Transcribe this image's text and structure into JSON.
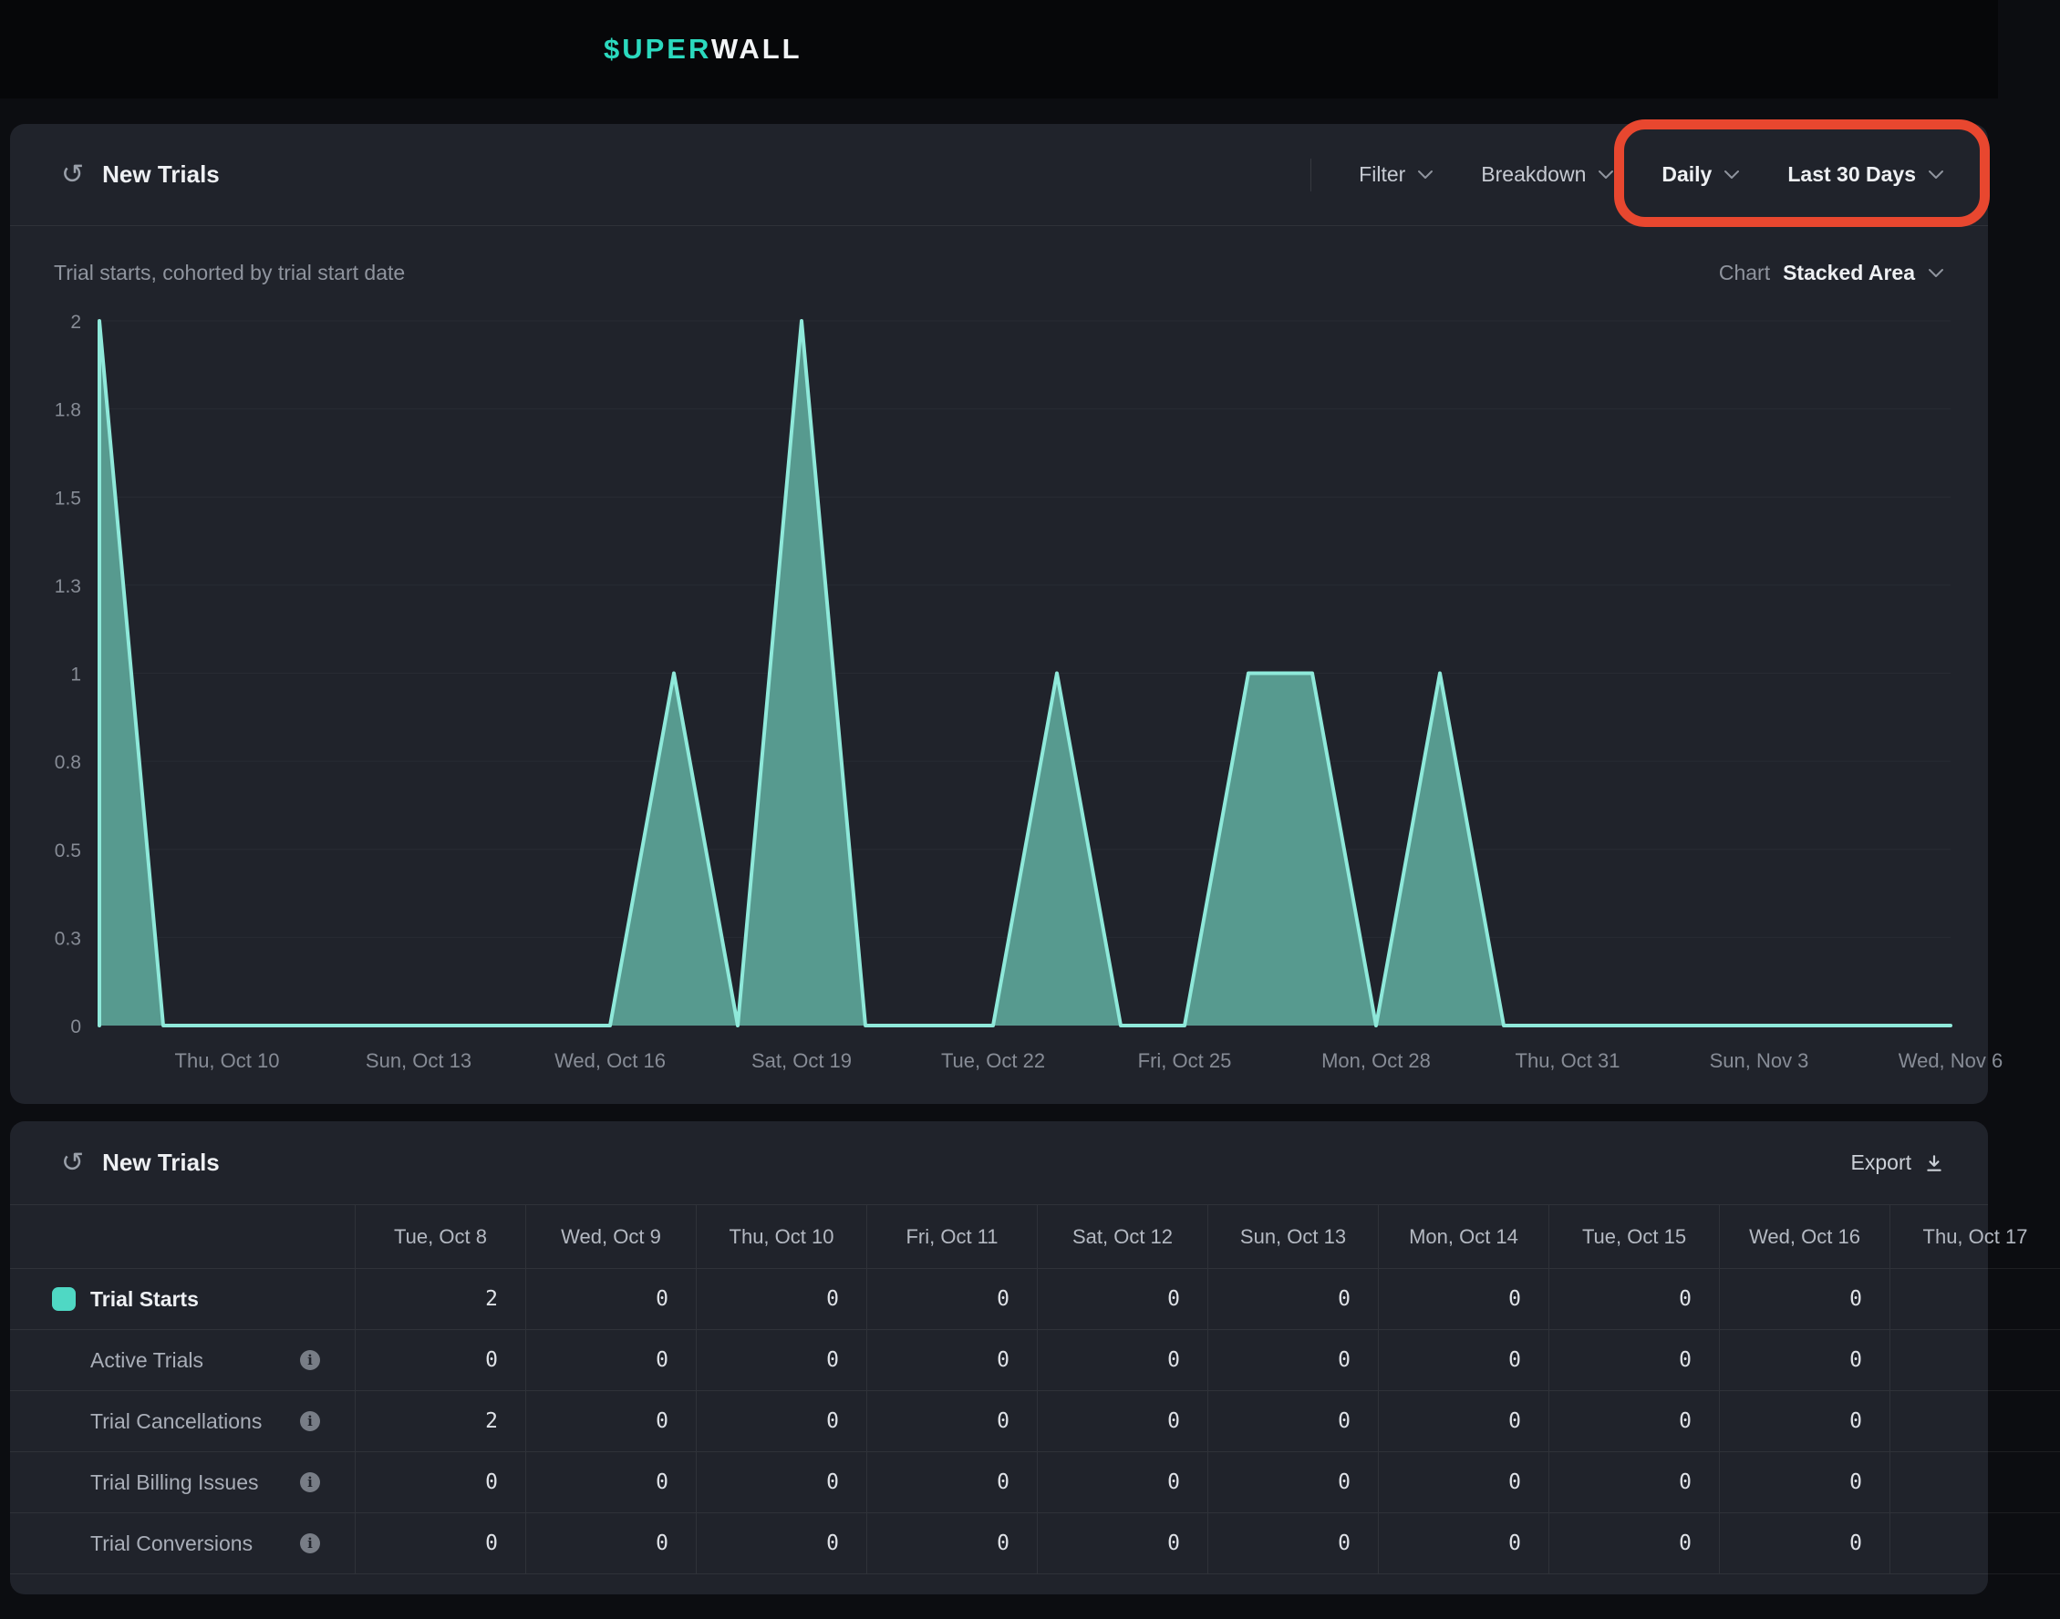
{
  "header": {
    "logo_accent": "$UPER",
    "logo_rest": "WALL"
  },
  "chart_panel": {
    "title": "New Trials",
    "subtitle": "Trial starts, cohorted by trial start date",
    "controls": {
      "filter": "Filter",
      "breakdown": "Breakdown",
      "granularity": "Daily",
      "range": "Last 30 Days"
    },
    "chart_type_label": "Chart",
    "chart_type_value": "Stacked Area"
  },
  "chart_data": {
    "type": "area",
    "title": "New Trials",
    "ylim": [
      0,
      2
    ],
    "y_ticks": [
      {
        "label": "2",
        "value": 2
      },
      {
        "label": "1.8",
        "value": 1.75
      },
      {
        "label": "1.5",
        "value": 1.5
      },
      {
        "label": "1.3",
        "value": 1.25
      },
      {
        "label": "1",
        "value": 1
      },
      {
        "label": "0.8",
        "value": 0.75
      },
      {
        "label": "0.5",
        "value": 0.5
      },
      {
        "label": "0.3",
        "value": 0.25
      },
      {
        "label": "0",
        "value": 0
      }
    ],
    "x_tick_labels": [
      {
        "label": "Thu, Oct 10",
        "i": 2
      },
      {
        "label": "Sun, Oct 13",
        "i": 5
      },
      {
        "label": "Wed, Oct 16",
        "i": 8
      },
      {
        "label": "Sat, Oct 19",
        "i": 11
      },
      {
        "label": "Tue, Oct 22",
        "i": 14
      },
      {
        "label": "Fri, Oct 25",
        "i": 17
      },
      {
        "label": "Mon, Oct 28",
        "i": 20
      },
      {
        "label": "Thu, Oct 31",
        "i": 23
      },
      {
        "label": "Sun, Nov 3",
        "i": 26
      },
      {
        "label": "Wed, Nov 6",
        "i": 29
      }
    ],
    "series": [
      {
        "name": "Trial Starts",
        "values": [
          2,
          0,
          0,
          0,
          0,
          0,
          0,
          0,
          0,
          1,
          0,
          2,
          0,
          0,
          0,
          1,
          0,
          0,
          1,
          1,
          0,
          1,
          0,
          0,
          0,
          0,
          0,
          0,
          0,
          0
        ]
      }
    ],
    "colors": {
      "fill": "#579a8f",
      "stroke": "#8fe9da"
    },
    "grid": true,
    "legend": "none"
  },
  "table_panel": {
    "title": "New Trials",
    "export_label": "Export",
    "columns": [
      "Tue, Oct 8",
      "Wed, Oct 9",
      "Thu, Oct 10",
      "Fri, Oct 11",
      "Sat, Oct 12",
      "Sun, Oct 13",
      "Mon, Oct 14",
      "Tue, Oct 15",
      "Wed, Oct 16",
      "Thu, Oct 17"
    ],
    "rows": [
      {
        "label": "Trial Starts",
        "swatch": true,
        "info": false,
        "values": [
          "2",
          "0",
          "0",
          "0",
          "0",
          "0",
          "0",
          "0",
          "0",
          ""
        ]
      },
      {
        "label": "Active Trials",
        "swatch": false,
        "info": true,
        "values": [
          "0",
          "0",
          "0",
          "0",
          "0",
          "0",
          "0",
          "0",
          "0",
          ""
        ]
      },
      {
        "label": "Trial Cancellations",
        "swatch": false,
        "info": true,
        "values": [
          "2",
          "0",
          "0",
          "0",
          "0",
          "0",
          "0",
          "0",
          "0",
          ""
        ]
      },
      {
        "label": "Trial Billing Issues",
        "swatch": false,
        "info": true,
        "values": [
          "0",
          "0",
          "0",
          "0",
          "0",
          "0",
          "0",
          "0",
          "0",
          ""
        ]
      },
      {
        "label": "Trial Conversions",
        "swatch": false,
        "info": true,
        "values": [
          "0",
          "0",
          "0",
          "0",
          "0",
          "0",
          "0",
          "0",
          "0",
          ""
        ]
      }
    ]
  },
  "annotation": {
    "color": "#e8472f"
  }
}
